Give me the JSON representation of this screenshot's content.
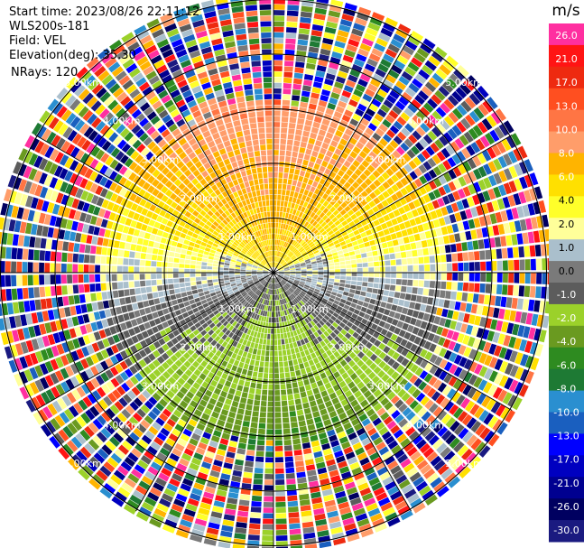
{
  "header": {
    "start_time": "Start time: 2023/08/26 22:11:12",
    "instrument": "WLS200s-181",
    "field": "Field: VEL",
    "elevation": "Elevation(deg): 35.30",
    "nrays": "NRays: 120"
  },
  "chart_data": {
    "type": "heatmap",
    "projection": "polar (PPI)",
    "field": "VEL",
    "unit": "m/s",
    "n_rays": 120,
    "range_rings_km": [
      1.0,
      2.0,
      3.0,
      4.0,
      5.0
    ],
    "ring_labels": [
      "1.00km",
      "2.00km",
      "3.00km",
      "4.00km",
      "5.00km"
    ],
    "colorbar": {
      "title": "m/s",
      "ticks": [
        "26.0",
        "21.0",
        "17.0",
        "13.0",
        "10.0",
        "8.0",
        "6.0",
        "4.0",
        "2.0",
        "1.0",
        "0.0",
        "-1.0",
        "-2.0",
        "-4.0",
        "-6.0",
        "-8.0",
        "-10.0",
        "-13.0",
        "-17.0",
        "-21.0",
        "-26.0",
        "-30.0"
      ],
      "colors": [
        "#ff2fa0",
        "#ff1414",
        "#ee2a10",
        "#ff4f20",
        "#ff7544",
        "#ff9d6a",
        "#ffb400",
        "#ffe000",
        "#ffff2a",
        "#ffff9a",
        "#aabfcc",
        "#7a7a7a",
        "#5c5c5c",
        "#9bd12a",
        "#6a9a20",
        "#2e8b20",
        "#1e7a34",
        "#2a8fd0",
        "#1a5fbf",
        "#0000ff",
        "#0000c0",
        "#000090",
        "#000060",
        "#1a1a80"
      ]
    },
    "inner_structure": "velocity field: positive (yellow/orange) toward north half, near-zero gray band near center, negative (green/blue) toward south half, noise speckle beyond about 3 km"
  }
}
